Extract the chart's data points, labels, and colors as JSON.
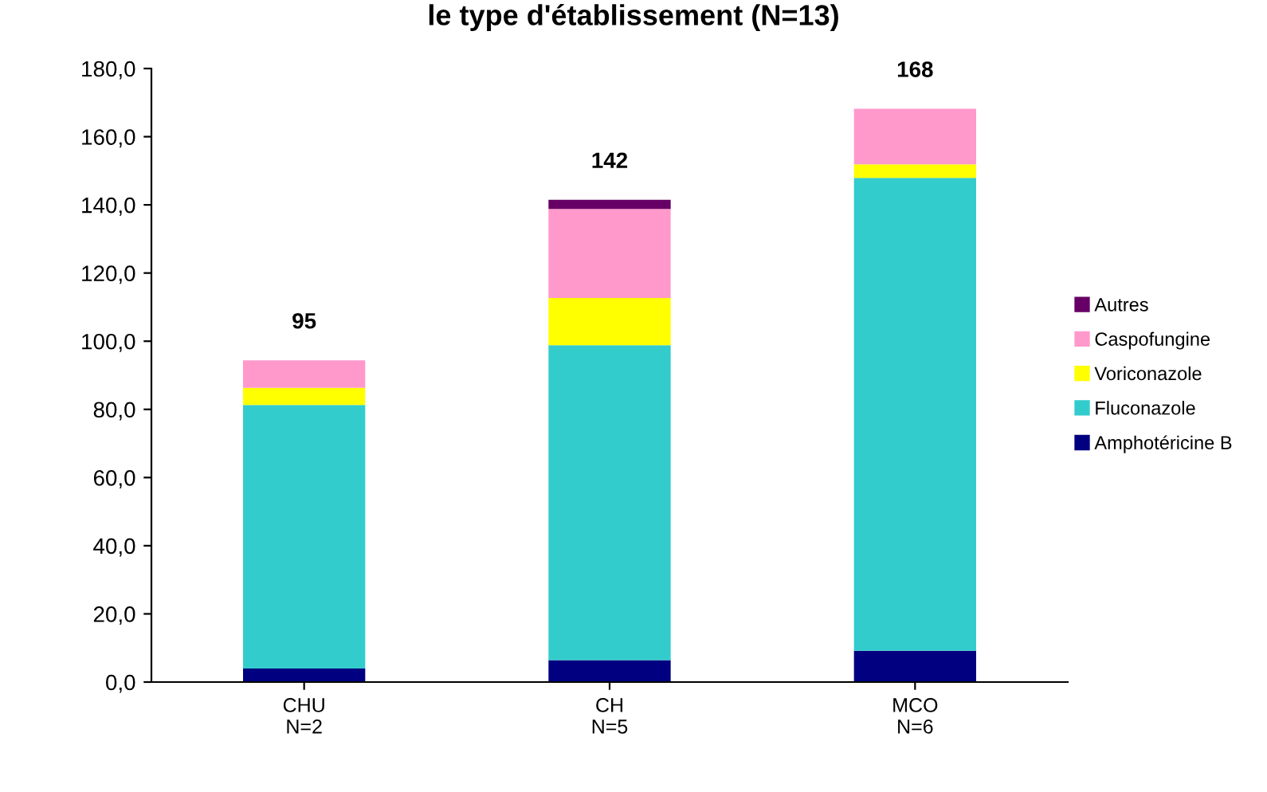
{
  "chart_data": {
    "type": "bar",
    "title": "le type d'établissement (N=13)",
    "stacked": true,
    "categories": [
      "CHU\nN=2",
      "CH\nN=5",
      "MCO\nN=6"
    ],
    "series": [
      {
        "name": "Amphotéricine B",
        "color": "#000080",
        "values": [
          4.0,
          6.4,
          9.2
        ]
      },
      {
        "name": "Fluconazole",
        "color": "#33cccc",
        "values": [
          77.3,
          92.4,
          138.7
        ]
      },
      {
        "name": "Voriconazole",
        "color": "#ffff00",
        "values": [
          5.0,
          13.9,
          4.0
        ]
      },
      {
        "name": "Caspofungine",
        "color": "#ff99cc",
        "values": [
          8.1,
          26.1,
          16.3
        ]
      },
      {
        "name": "Autres",
        "color": "#660066",
        "values": [
          0,
          2.7,
          0
        ]
      }
    ],
    "totals": [
      "95",
      "142",
      "168"
    ],
    "ylim": [
      0,
      180
    ],
    "yticks": [
      {
        "value": 0,
        "label": "0,0"
      },
      {
        "value": 20,
        "label": "20,0"
      },
      {
        "value": 40,
        "label": "40,0"
      },
      {
        "value": 60,
        "label": "60,0"
      },
      {
        "value": 80,
        "label": "80,0"
      },
      {
        "value": 100,
        "label": "100,0"
      },
      {
        "value": 120,
        "label": "120,0"
      },
      {
        "value": 140,
        "label": "140,0"
      },
      {
        "value": 160,
        "label": "160,0"
      },
      {
        "value": 180,
        "label": "180,0"
      }
    ],
    "grid": false,
    "legend": "right"
  }
}
